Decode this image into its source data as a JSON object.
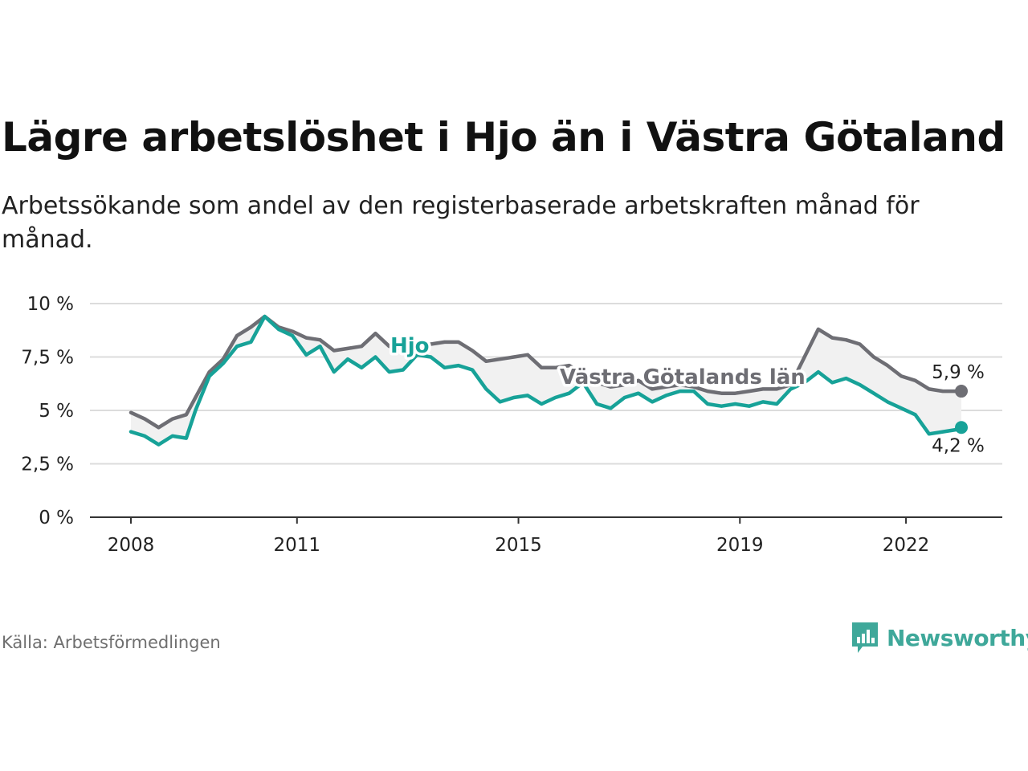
{
  "title": "Lägre arbetslöshet i Hjo än i Västra Götaland",
  "subtitle": "Arbetssökande som andel av den registerbaserade arbetskraften månad för månad.",
  "source": "Källa: Arbetsförmedlingen",
  "brand": {
    "name": "Newsworthy",
    "icon": "newsworthy-logo-icon",
    "color": "#3fa89a"
  },
  "chart_data": {
    "type": "line",
    "x_start": "2008-01",
    "x_end": "2023-01",
    "x_ticks": [
      "2008",
      "2011",
      "2015",
      "2019",
      "2022"
    ],
    "y_ticks": [
      "0 %",
      "2,5 %",
      "5 %",
      "7,5 %",
      "10 %"
    ],
    "ylim": [
      0,
      10
    ],
    "grid": true,
    "fill_between": true,
    "series": [
      {
        "name": "Hjo",
        "color": "#17a298",
        "end_label": "4,2 %",
        "points": [
          [
            "2008-01",
            4.0
          ],
          [
            "2008-04",
            3.8
          ],
          [
            "2008-07",
            3.4
          ],
          [
            "2008-10",
            3.8
          ],
          [
            "2009-01",
            3.7
          ],
          [
            "2009-03",
            5.0
          ],
          [
            "2009-06",
            6.6
          ],
          [
            "2009-09",
            7.2
          ],
          [
            "2009-12",
            8.0
          ],
          [
            "2010-03",
            8.2
          ],
          [
            "2010-06",
            9.4
          ],
          [
            "2010-09",
            8.8
          ],
          [
            "2010-12",
            8.5
          ],
          [
            "2011-03",
            7.6
          ],
          [
            "2011-06",
            8.0
          ],
          [
            "2011-09",
            6.8
          ],
          [
            "2011-12",
            7.4
          ],
          [
            "2012-03",
            7.0
          ],
          [
            "2012-06",
            7.5
          ],
          [
            "2012-09",
            6.8
          ],
          [
            "2012-12",
            6.9
          ],
          [
            "2013-03",
            7.6
          ],
          [
            "2013-06",
            7.5
          ],
          [
            "2013-09",
            7.0
          ],
          [
            "2013-12",
            7.1
          ],
          [
            "2014-03",
            6.9
          ],
          [
            "2014-06",
            6.0
          ],
          [
            "2014-09",
            5.4
          ],
          [
            "2014-12",
            5.6
          ],
          [
            "2015-03",
            5.7
          ],
          [
            "2015-06",
            5.3
          ],
          [
            "2015-09",
            5.6
          ],
          [
            "2015-12",
            5.8
          ],
          [
            "2016-03",
            6.3
          ],
          [
            "2016-06",
            5.3
          ],
          [
            "2016-09",
            5.1
          ],
          [
            "2016-12",
            5.6
          ],
          [
            "2017-03",
            5.8
          ],
          [
            "2017-06",
            5.4
          ],
          [
            "2017-09",
            5.7
          ],
          [
            "2017-12",
            5.9
          ],
          [
            "2018-03",
            5.9
          ],
          [
            "2018-06",
            5.3
          ],
          [
            "2018-09",
            5.2
          ],
          [
            "2018-12",
            5.3
          ],
          [
            "2019-03",
            5.2
          ],
          [
            "2019-06",
            5.4
          ],
          [
            "2019-09",
            5.3
          ],
          [
            "2019-12",
            6.0
          ],
          [
            "2020-03",
            6.3
          ],
          [
            "2020-06",
            6.8
          ],
          [
            "2020-09",
            6.3
          ],
          [
            "2020-12",
            6.5
          ],
          [
            "2021-03",
            6.2
          ],
          [
            "2021-06",
            5.8
          ],
          [
            "2021-09",
            5.4
          ],
          [
            "2021-12",
            5.1
          ],
          [
            "2022-03",
            4.8
          ],
          [
            "2022-06",
            3.9
          ],
          [
            "2022-09",
            4.0
          ],
          [
            "2022-12",
            4.1
          ],
          [
            "2023-01",
            4.2
          ]
        ]
      },
      {
        "name": "Västra Götalands län",
        "color": "#6e6e74",
        "end_label": "5,9 %",
        "points": [
          [
            "2008-01",
            4.9
          ],
          [
            "2008-04",
            4.6
          ],
          [
            "2008-07",
            4.2
          ],
          [
            "2008-10",
            4.6
          ],
          [
            "2009-01",
            4.8
          ],
          [
            "2009-03",
            5.6
          ],
          [
            "2009-06",
            6.8
          ],
          [
            "2009-09",
            7.4
          ],
          [
            "2009-12",
            8.5
          ],
          [
            "2010-03",
            8.9
          ],
          [
            "2010-06",
            9.4
          ],
          [
            "2010-09",
            8.9
          ],
          [
            "2010-12",
            8.7
          ],
          [
            "2011-03",
            8.4
          ],
          [
            "2011-06",
            8.3
          ],
          [
            "2011-09",
            7.8
          ],
          [
            "2011-12",
            7.9
          ],
          [
            "2012-03",
            8.0
          ],
          [
            "2012-06",
            8.6
          ],
          [
            "2012-09",
            8.0
          ],
          [
            "2012-12",
            7.9
          ],
          [
            "2013-03",
            8.0
          ],
          [
            "2013-06",
            8.1
          ],
          [
            "2013-09",
            8.2
          ],
          [
            "2013-12",
            8.2
          ],
          [
            "2014-03",
            7.8
          ],
          [
            "2014-06",
            7.3
          ],
          [
            "2014-09",
            7.4
          ],
          [
            "2014-12",
            7.5
          ],
          [
            "2015-03",
            7.6
          ],
          [
            "2015-06",
            7.0
          ],
          [
            "2015-09",
            7.0
          ],
          [
            "2015-12",
            7.1
          ],
          [
            "2016-03",
            6.7
          ],
          [
            "2016-06",
            6.3
          ],
          [
            "2016-09",
            6.1
          ],
          [
            "2016-12",
            6.2
          ],
          [
            "2017-03",
            6.4
          ],
          [
            "2017-06",
            6.0
          ],
          [
            "2017-09",
            6.1
          ],
          [
            "2017-12",
            6.2
          ],
          [
            "2018-03",
            6.1
          ],
          [
            "2018-06",
            5.9
          ],
          [
            "2018-09",
            5.8
          ],
          [
            "2018-12",
            5.8
          ],
          [
            "2019-03",
            5.9
          ],
          [
            "2019-06",
            6.0
          ],
          [
            "2019-09",
            6.0
          ],
          [
            "2019-12",
            6.2
          ],
          [
            "2020-03",
            7.5
          ],
          [
            "2020-06",
            8.8
          ],
          [
            "2020-09",
            8.4
          ],
          [
            "2020-12",
            8.3
          ],
          [
            "2021-03",
            8.1
          ],
          [
            "2021-06",
            7.5
          ],
          [
            "2021-09",
            7.1
          ],
          [
            "2021-12",
            6.6
          ],
          [
            "2022-03",
            6.4
          ],
          [
            "2022-06",
            6.0
          ],
          [
            "2022-09",
            5.9
          ],
          [
            "2022-12",
            5.9
          ],
          [
            "2023-01",
            5.9
          ]
        ]
      }
    ]
  }
}
